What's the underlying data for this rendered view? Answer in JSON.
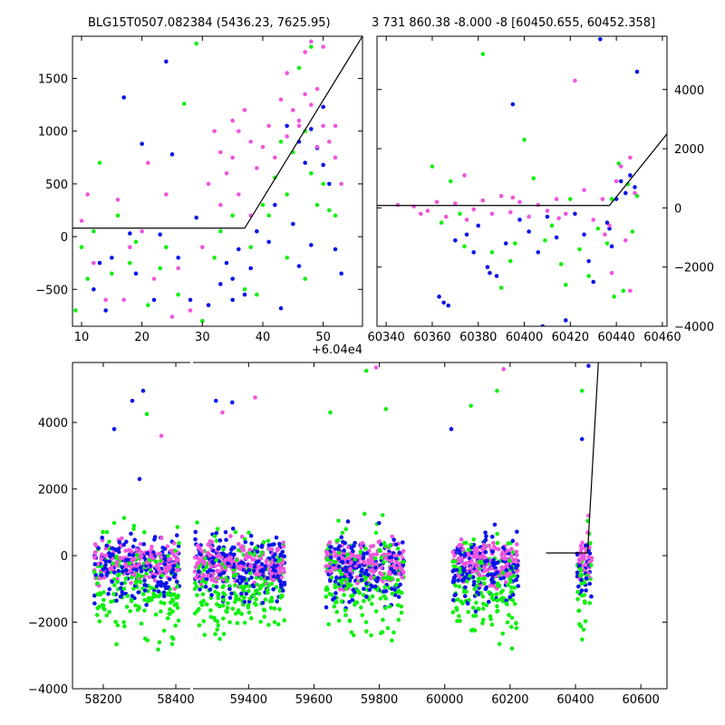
{
  "chart_data": [
    {
      "type": "scatter",
      "title": "BLG15T0507.082384 (5436.23, 7625.95)",
      "x_offset_label": "+6.04e4",
      "x_ticks": [
        "10",
        "20",
        "30",
        "40",
        "50"
      ],
      "y_ticks": [
        "−500",
        "0",
        "500",
        "1000",
        "1500"
      ],
      "xlim": [
        8.5,
        56.5
      ],
      "ylim": [
        -850,
        1900
      ],
      "model_line": {
        "x": [
          8.5,
          37,
          56.5
        ],
        "y": [
          80,
          80,
          1900
        ]
      },
      "series": [
        {
          "color": "#0a14e8",
          "values": [
            [
              12,
              -500
            ],
            [
              15,
              -200
            ],
            [
              17,
              1320
            ],
            [
              20,
              880
            ],
            [
              23,
              20
            ],
            [
              25,
              780
            ],
            [
              28,
              -600
            ],
            [
              33,
              -450
            ],
            [
              34,
              -250
            ],
            [
              35,
              -400
            ],
            [
              36,
              -120
            ],
            [
              37,
              -550
            ],
            [
              38,
              -300
            ],
            [
              41,
              -50
            ],
            [
              43,
              -680
            ],
            [
              45,
              120
            ],
            [
              46,
              -280
            ],
            [
              47,
              700
            ],
            [
              48,
              1020
            ],
            [
              49,
              840
            ],
            [
              50,
              1230
            ],
            [
              51,
              500
            ],
            [
              52,
              -120
            ],
            [
              44,
              1050
            ],
            [
              46,
              900
            ],
            [
              50,
              680
            ],
            [
              24,
              1660
            ],
            [
              14,
              -700
            ],
            [
              19,
              -350
            ],
            [
              29,
              180
            ],
            [
              31,
              -650
            ],
            [
              35,
              -600
            ],
            [
              39,
              50
            ],
            [
              42,
              300
            ],
            [
              48,
              -80
            ],
            [
              53,
              -350
            ],
            [
              13,
              -250
            ],
            [
              18,
              30
            ],
            [
              22,
              -600
            ],
            [
              26,
              -200
            ]
          ]
        },
        {
          "color": "#10f010",
          "values": [
            [
              9,
              -700
            ],
            [
              11,
              -400
            ],
            [
              13,
              700
            ],
            [
              16,
              200
            ],
            [
              18,
              -250
            ],
            [
              21,
              -650
            ],
            [
              24,
              -100
            ],
            [
              27,
              1260
            ],
            [
              29,
              1830
            ],
            [
              32,
              -200
            ],
            [
              35,
              200
            ],
            [
              38,
              -100
            ],
            [
              40,
              300
            ],
            [
              42,
              560
            ],
            [
              43,
              900
            ],
            [
              44,
              400
            ],
            [
              45,
              800
            ],
            [
              47,
              1000
            ],
            [
              48,
              600
            ],
            [
              49,
              300
            ],
            [
              50,
              500
            ],
            [
              51,
              250
            ],
            [
              52,
              200
            ],
            [
              46,
              1600
            ],
            [
              48,
              1800
            ],
            [
              37,
              -500
            ],
            [
              39,
              -550
            ],
            [
              41,
              200
            ],
            [
              44,
              -200
            ],
            [
              47,
              -400
            ],
            [
              10,
              -100
            ],
            [
              12,
              50
            ],
            [
              15,
              -350
            ],
            [
              19,
              -50
            ],
            [
              23,
              -300
            ],
            [
              26,
              -550
            ],
            [
              30,
              -800
            ],
            [
              33,
              50
            ]
          ]
        },
        {
          "color": "#ee55dd",
          "values": [
            [
              10,
              150
            ],
            [
              12,
              -250
            ],
            [
              14,
              -600
            ],
            [
              16,
              350
            ],
            [
              18,
              -100
            ],
            [
              20,
              50
            ],
            [
              22,
              -400
            ],
            [
              24,
              400
            ],
            [
              26,
              -300
            ],
            [
              28,
              -700
            ],
            [
              31,
              500
            ],
            [
              32,
              1000
            ],
            [
              33,
              800
            ],
            [
              34,
              600
            ],
            [
              35,
              1100
            ],
            [
              36,
              400
            ],
            [
              37,
              1200
            ],
            [
              38,
              900
            ],
            [
              39,
              650
            ],
            [
              40,
              850
            ],
            [
              41,
              1050
            ],
            [
              42,
              750
            ],
            [
              43,
              1300
            ],
            [
              44,
              950
            ],
            [
              45,
              1200
            ],
            [
              46,
              1100
            ],
            [
              47,
              1350
            ],
            [
              48,
              1250
            ],
            [
              49,
              1400
            ],
            [
              50,
              1050
            ],
            [
              51,
              900
            ],
            [
              52,
              750
            ],
            [
              53,
              500
            ],
            [
              30,
              -100
            ],
            [
              25,
              -760
            ],
            [
              21,
              700
            ],
            [
              17,
              -600
            ],
            [
              11,
              400
            ],
            [
              48,
              1850
            ],
            [
              47,
              1750
            ],
            [
              50,
              1800
            ],
            [
              44,
              1550
            ],
            [
              46,
              1050
            ],
            [
              49,
              850
            ],
            [
              52,
              1050
            ],
            [
              35,
              750
            ],
            [
              33,
              300
            ],
            [
              36,
              1000
            ],
            [
              38,
              200
            ]
          ]
        }
      ]
    },
    {
      "type": "scatter",
      "title": "3 731 860.38 -8.000 -8 [60450.655, 60452.358]",
      "x_ticks": [
        "60340",
        "60360",
        "60380",
        "60400",
        "60420",
        "60440",
        "60460"
      ],
      "y_ticks": [
        "−4000",
        "−2000",
        "0",
        "2000",
        "4000"
      ],
      "xlim": [
        60336,
        60462
      ],
      "ylim": [
        -4000,
        5800
      ],
      "model_line": {
        "x": [
          60336,
          60437,
          60462
        ],
        "y": [
          80,
          80,
          2500
        ]
      },
      "series": [
        {
          "color": "#0a14e8",
          "values": [
            [
              60363,
              -3000
            ],
            [
              60367,
              -3300
            ],
            [
              60370,
              -1100
            ],
            [
              60375,
              -900
            ],
            [
              60378,
              -1500
            ],
            [
              60380,
              -600
            ],
            [
              60384,
              -2000
            ],
            [
              60388,
              -2300
            ],
            [
              60392,
              -1200
            ],
            [
              60395,
              3500
            ],
            [
              60398,
              -400
            ],
            [
              60402,
              -800
            ],
            [
              60406,
              -1500
            ],
            [
              60410,
              -300
            ],
            [
              60414,
              -1000
            ],
            [
              60418,
              -3800
            ],
            [
              60422,
              -200
            ],
            [
              60426,
              -900
            ],
            [
              60430,
              -2500
            ],
            [
              60433,
              5700
            ],
            [
              60436,
              -500
            ],
            [
              60438,
              -1300
            ],
            [
              60440,
              300
            ],
            [
              60442,
              900
            ],
            [
              60444,
              500
            ],
            [
              60446,
              1100
            ],
            [
              60448,
              700
            ],
            [
              60449,
              4600
            ],
            [
              60365,
              -3200
            ],
            [
              60385,
              -2200
            ],
            [
              60408,
              -4000
            ],
            [
              60428,
              -1800
            ],
            [
              60437,
              -700
            ]
          ]
        },
        {
          "color": "#10f010",
          "values": [
            [
              60360,
              1400
            ],
            [
              60368,
              900
            ],
            [
              60372,
              -200
            ],
            [
              60382,
              5200
            ],
            [
              60386,
              -1500
            ],
            [
              60390,
              -2700
            ],
            [
              60396,
              -1200
            ],
            [
              60400,
              2300
            ],
            [
              60404,
              1000
            ],
            [
              60409,
              -1100
            ],
            [
              60412,
              -600
            ],
            [
              60416,
              -1900
            ],
            [
              60420,
              300
            ],
            [
              60424,
              -1400
            ],
            [
              60428,
              -2300
            ],
            [
              60432,
              -700
            ],
            [
              60436,
              -1200
            ],
            [
              60438,
              300
            ],
            [
              60441,
              1500
            ],
            [
              60443,
              -2800
            ],
            [
              60445,
              800
            ],
            [
              60447,
              -800
            ],
            [
              60449,
              400
            ],
            [
              60364,
              -500
            ],
            [
              60374,
              -1300
            ],
            [
              60394,
              -1800
            ],
            [
              60418,
              -2600
            ],
            [
              60439,
              -3000
            ]
          ]
        },
        {
          "color": "#ee55dd",
          "values": [
            [
              60345,
              100
            ],
            [
              60352,
              50
            ],
            [
              60358,
              -100
            ],
            [
              60362,
              200
            ],
            [
              60366,
              -300
            ],
            [
              60370,
              150
            ],
            [
              60374,
              1100
            ],
            [
              60378,
              -50
            ],
            [
              60382,
              250
            ],
            [
              60386,
              -200
            ],
            [
              60390,
              400
            ],
            [
              60394,
              -150
            ],
            [
              60398,
              200
            ],
            [
              60402,
              -300
            ],
            [
              60406,
              100
            ],
            [
              60410,
              -100
            ],
            [
              60414,
              300
            ],
            [
              60418,
              -200
            ],
            [
              60422,
              4300
            ],
            [
              60426,
              600
            ],
            [
              60430,
              -400
            ],
            [
              60434,
              300
            ],
            [
              60437,
              -600
            ],
            [
              60440,
              900
            ],
            [
              60442,
              1400
            ],
            [
              60444,
              -1100
            ],
            [
              60446,
              1700
            ],
            [
              60448,
              500
            ],
            [
              60446,
              -2800
            ],
            [
              60438,
              -2200
            ],
            [
              60355,
              -200
            ],
            [
              60375,
              -400
            ],
            [
              60395,
              350
            ],
            [
              60415,
              -350
            ],
            [
              60435,
              -900
            ]
          ]
        }
      ]
    },
    {
      "type": "scatter",
      "title": "",
      "x_ticks": [
        "58200",
        "58400",
        "59400",
        "59600",
        "59800",
        "60000",
        "60200",
        "60400",
        "60600"
      ],
      "y_ticks": [
        "−4000",
        "−2000",
        "0",
        "2000",
        "4000"
      ],
      "ylim": [
        -4000,
        5800
      ],
      "x_segments": [
        {
          "xlim": [
            58115,
            58440
          ],
          "clusters": [
            [
              58175,
              58410
            ]
          ]
        },
        {
          "xlim": [
            59230,
            60680
          ],
          "clusters": [
            [
              59235,
              59510
            ],
            [
              59635,
              59875
            ],
            [
              60025,
              60225
            ],
            [
              60405,
              60450
            ]
          ]
        }
      ],
      "model_line": {
        "x": [
          60310,
          60437,
          60470
        ],
        "y": [
          80,
          80,
          5800
        ]
      },
      "series": [
        {
          "color": "#0a14e8",
          "values": [
            [
              58230,
              3800
            ],
            [
              58280,
              4650
            ],
            [
              58310,
              4950
            ],
            [
              58300,
              2300
            ],
            [
              59300,
              4650
            ],
            [
              59350,
              4600
            ],
            [
              60020,
              3800
            ],
            [
              60440,
              5700
            ],
            [
              60420,
              3500
            ]
          ]
        },
        {
          "color": "#10f010",
          "values": [
            [
              58320,
              4250
            ],
            [
              59650,
              4300
            ],
            [
              59760,
              5550
            ],
            [
              60080,
              4500
            ],
            [
              60160,
              4950
            ],
            [
              60420,
              4950
            ],
            [
              59820,
              4400
            ]
          ]
        },
        {
          "color": "#ee55dd",
          "values": [
            [
              58360,
              3600
            ],
            [
              59420,
              4750
            ],
            [
              59790,
              5650
            ],
            [
              60180,
              5600
            ],
            [
              60440,
              1200
            ],
            [
              59320,
              4300
            ]
          ]
        }
      ]
    }
  ]
}
